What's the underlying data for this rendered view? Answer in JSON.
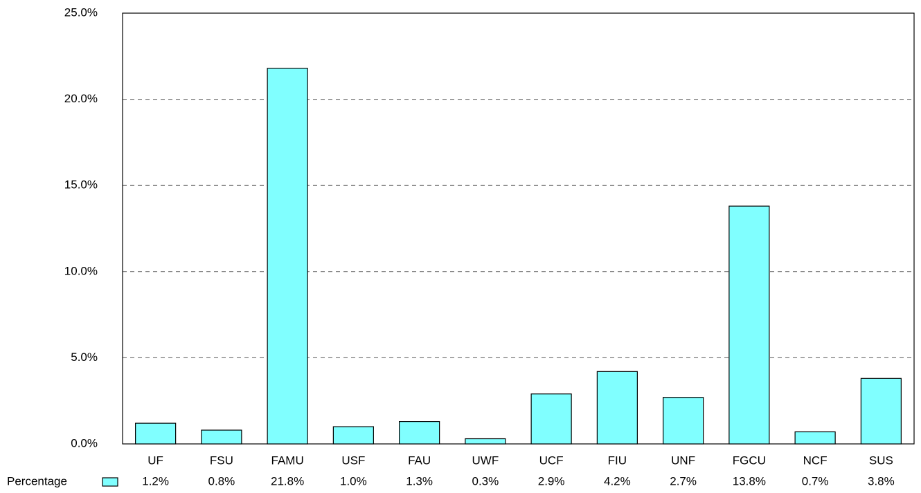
{
  "chart_data": {
    "type": "bar",
    "categories": [
      "UF",
      "FSU",
      "FAMU",
      "USF",
      "FAU",
      "UWF",
      "UCF",
      "FIU",
      "UNF",
      "FGCU",
      "NCF",
      "SUS"
    ],
    "series": [
      {
        "name": "Percentage",
        "color": "#80ffff",
        "values": [
          1.2,
          0.8,
          21.8,
          1.0,
          1.3,
          0.3,
          2.9,
          4.2,
          2.7,
          13.8,
          0.7,
          3.8
        ],
        "value_labels": [
          "1.2%",
          "0.8%",
          "21.8%",
          "1.0%",
          "1.3%",
          "0.3%",
          "2.9%",
          "4.2%",
          "2.7%",
          "13.8%",
          "0.7%",
          "3.8%"
        ]
      }
    ],
    "ylim": [
      0,
      25
    ],
    "yticks": [
      {
        "value": 0,
        "label": "0.0%"
      },
      {
        "value": 5,
        "label": "5.0%"
      },
      {
        "value": 10,
        "label": "10.0%"
      },
      {
        "value": 15,
        "label": "15.0%"
      },
      {
        "value": 20,
        "label": "20.0%"
      },
      {
        "value": 25,
        "label": "25.0%"
      }
    ],
    "grid": true
  }
}
